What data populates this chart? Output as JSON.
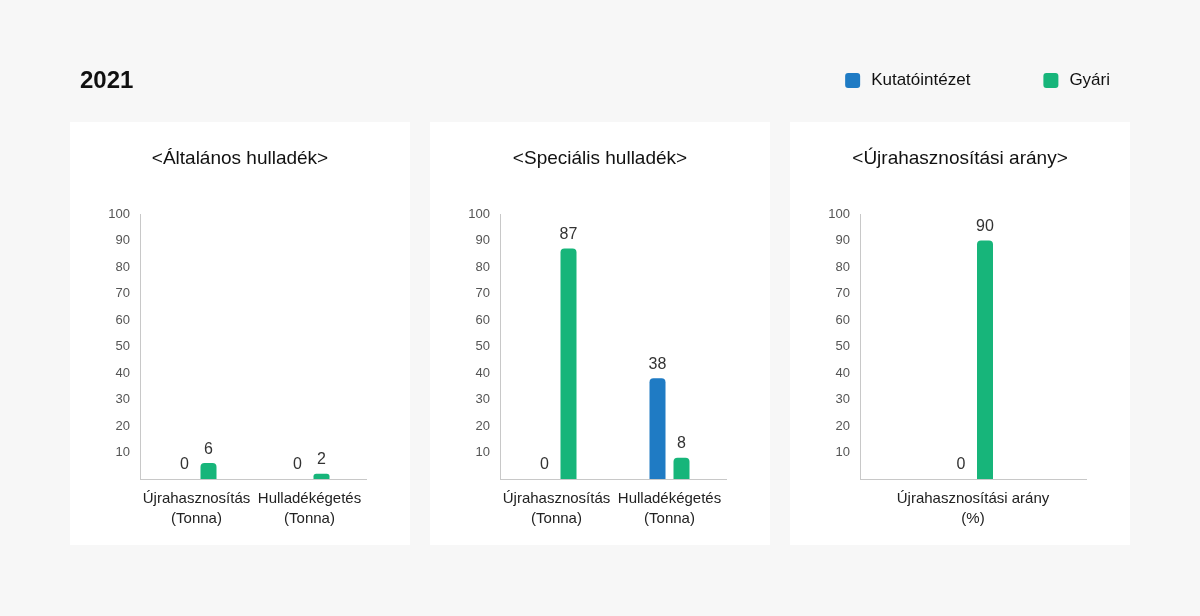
{
  "chart_data": [
    {
      "type": "other",
      "title": "2021"
    },
    {
      "type": "bar",
      "title": "<Általános hulladék>",
      "categories": [
        "Újrahasznosítás\n(Tonna)",
        "Hulladékégetés\n(Tonna)"
      ],
      "series": [
        {
          "color": "#1f7bc4",
          "values": [
            0,
            0
          ]
        },
        {
          "color": "#17b57a",
          "values": [
            6,
            2
          ]
        }
      ],
      "ylim": [
        0,
        100
      ],
      "yticks": [
        10,
        20,
        30,
        40,
        50,
        60,
        70,
        80,
        90,
        100
      ],
      "data_labels": true
    },
    {
      "type": "bar",
      "title": "<Speciális hulladék>",
      "categories": [
        "Újrahasznosítás\n(Tonna)",
        "Hulladékégetés\n(Tonna)"
      ],
      "series": [
        {
          "color": "#1f7bc4",
          "values": [
            0,
            38
          ]
        },
        {
          "color": "#17b57a",
          "values": [
            87,
            8
          ]
        }
      ],
      "ylim": [
        0,
        100
      ],
      "yticks": [
        10,
        20,
        30,
        40,
        50,
        60,
        70,
        80,
        90,
        100
      ],
      "data_labels": true
    },
    {
      "type": "bar",
      "title": "<Újrahasznosítási arány>",
      "categories": [
        "Újrahasznosítási arány\n(%)"
      ],
      "series": [
        {
          "name": "Kutatóintézet",
          "color": "#1f7bc4",
          "values": [
            0
          ]
        },
        {
          "name": "Gyári",
          "color": "#17b57a",
          "values": [
            90
          ]
        }
      ],
      "ylim": [
        0,
        100
      ],
      "yticks": [
        10,
        20,
        30,
        40,
        50,
        60,
        70,
        80,
        90,
        100
      ],
      "data_labels": true,
      "legend": "top right"
    }
  ]
}
